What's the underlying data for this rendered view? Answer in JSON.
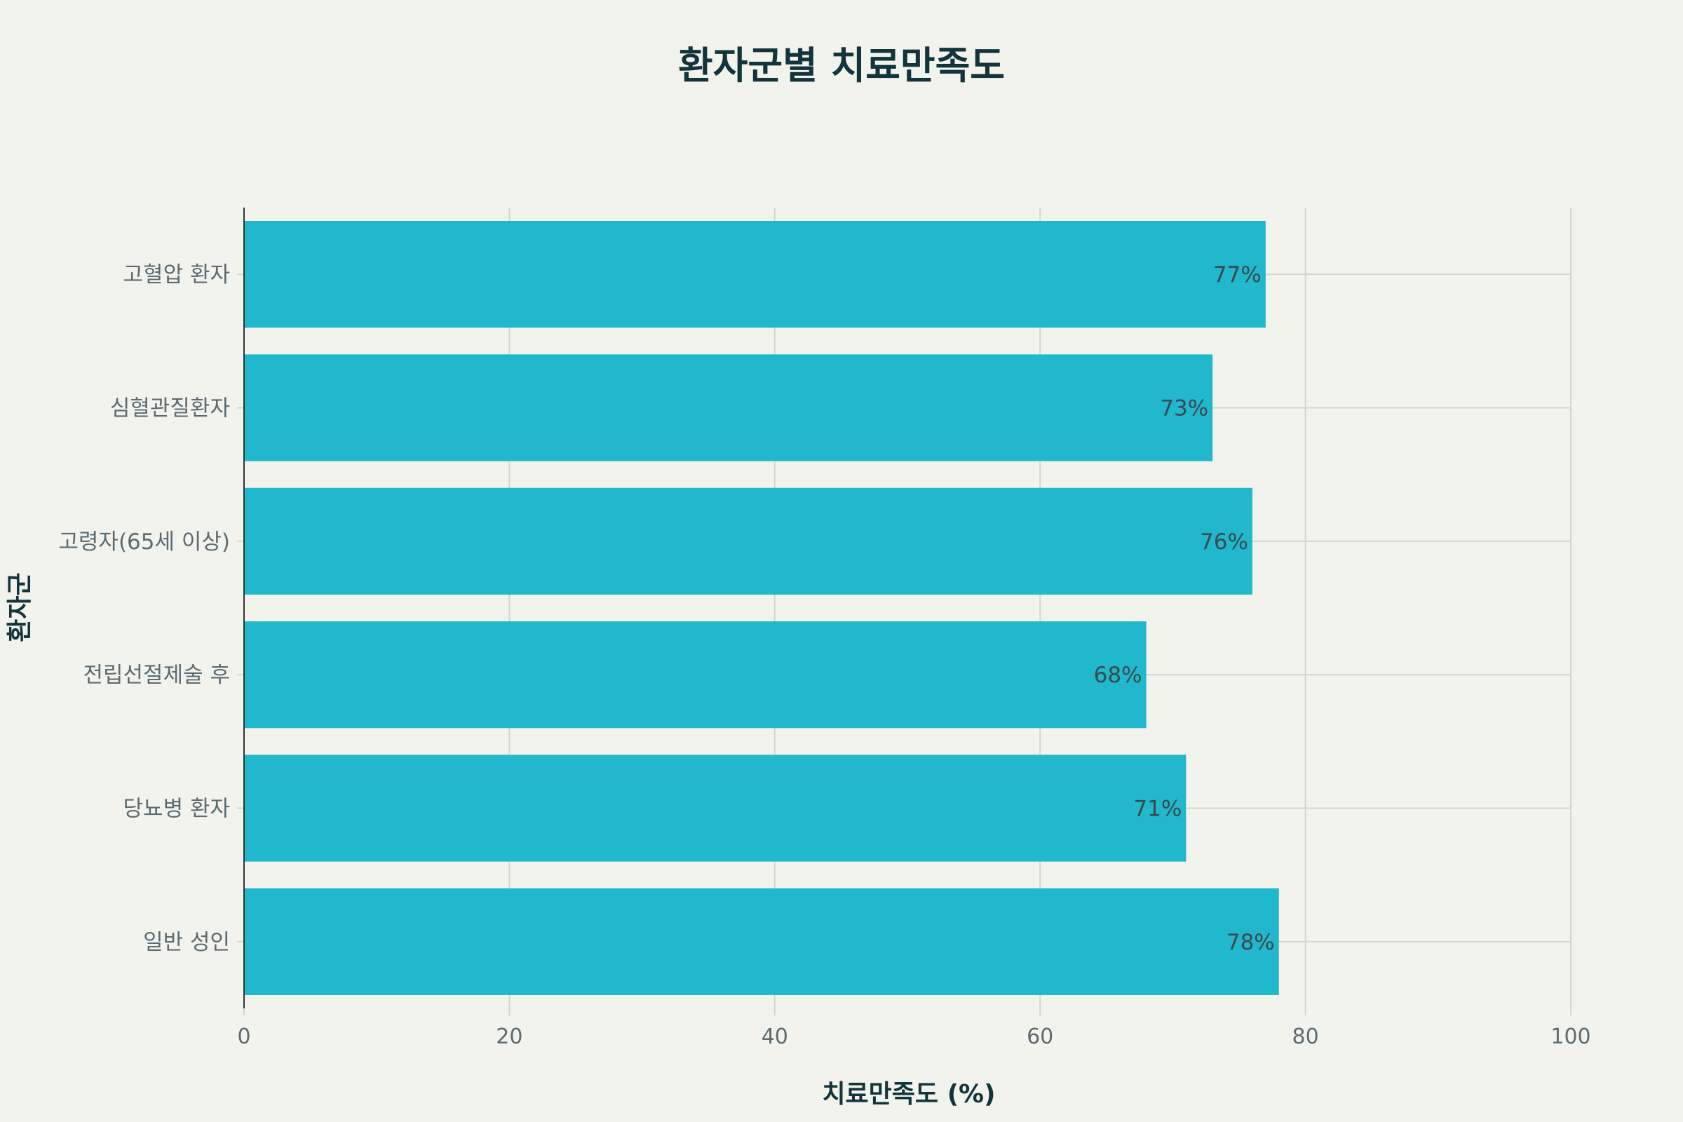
{
  "chart_data": {
    "type": "bar",
    "orientation": "horizontal",
    "title": "환자군별 치료만족도",
    "xlabel": "치료만족도 (%)",
    "ylabel": "환자군",
    "categories": [
      "고혈압 환자",
      "심혈관질환자",
      "고령자(65세 이상)",
      "전립선절제술 후",
      "당뇨병 환자",
      "일반 성인"
    ],
    "values": [
      77,
      73,
      76,
      68,
      71,
      78
    ],
    "data_labels": [
      "77%",
      "73%",
      "76%",
      "68%",
      "71%",
      "78%"
    ],
    "xlim": [
      0,
      100
    ],
    "xticks": [
      0,
      20,
      40,
      60,
      80,
      100
    ],
    "xtick_labels": [
      "0",
      "20",
      "40",
      "60",
      "80",
      "100"
    ],
    "grid": true,
    "legend": "none",
    "colors": {
      "bar": "#21b7cc",
      "background": "#f3f3ee",
      "title": "#13343b"
    }
  }
}
